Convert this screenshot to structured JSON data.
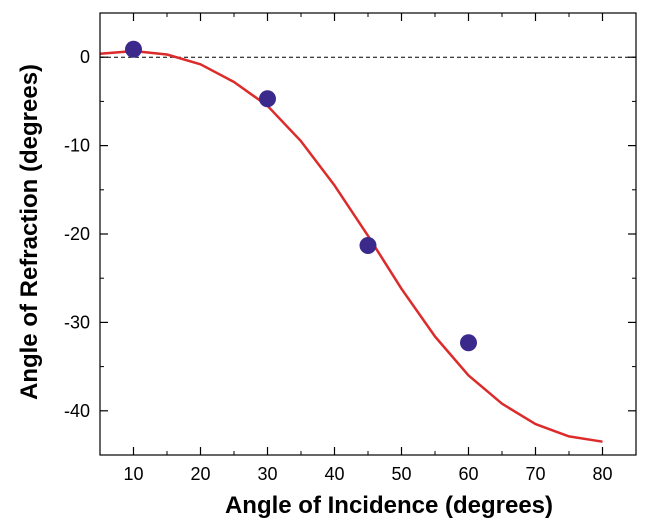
{
  "chart_data": {
    "type": "scatter",
    "title": "",
    "xlabel": "Angle of Incidence (degrees)",
    "ylabel": "Angle of Refraction (degrees)",
    "xlim": [
      5,
      85
    ],
    "ylim": [
      -45,
      5
    ],
    "x_ticks": [
      10,
      20,
      30,
      40,
      50,
      60,
      70,
      80
    ],
    "x_tick_labels": [
      "10",
      "20",
      "30",
      "40",
      "50",
      "60",
      "70",
      "80"
    ],
    "y_ticks": [
      0,
      -10,
      -20,
      -30,
      -40
    ],
    "y_tick_labels": [
      "0",
      "-10",
      "-20",
      "-30",
      "-40"
    ],
    "grid": false,
    "reference_line": {
      "y": 0,
      "style": "dashed"
    },
    "series": [
      {
        "type": "scatter",
        "x": [
          10,
          30,
          45,
          60
        ],
        "y": [
          0.9,
          -4.7,
          -21.3,
          -32.3
        ],
        "color": "#3b2a8c"
      },
      {
        "type": "line",
        "x": [
          5,
          10,
          15,
          20,
          25,
          30,
          35,
          40,
          45,
          50,
          55,
          60,
          65,
          70,
          75,
          80
        ],
        "y": [
          0.4,
          0.7,
          0.3,
          -0.8,
          -2.8,
          -5.5,
          -9.5,
          -14.5,
          -20.2,
          -26.2,
          -31.6,
          -36,
          -39.2,
          -41.5,
          -42.9,
          -43.5
        ],
        "color": "#dc2b2b"
      }
    ]
  }
}
